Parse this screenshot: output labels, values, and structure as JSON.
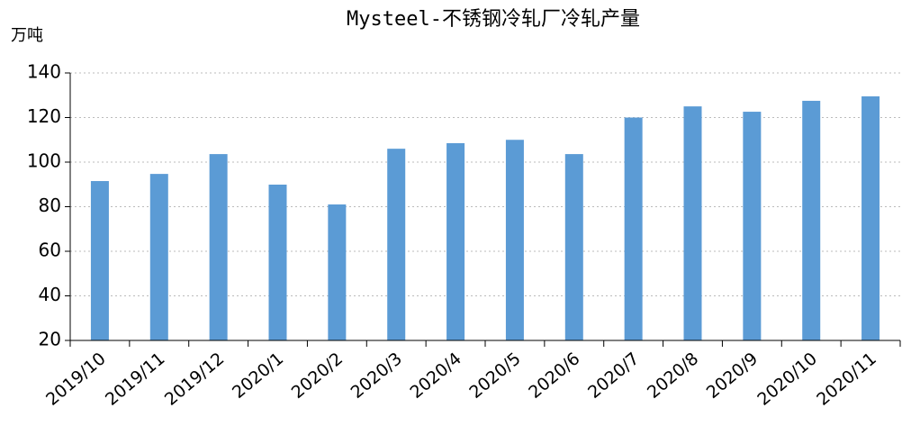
{
  "chart_data": {
    "type": "bar",
    "title": "Mysteel-不锈钢冷轧厂冷轧产量",
    "y_label": "万吨",
    "categories": [
      "2019/10",
      "2019/11",
      "2019/12",
      "2020/1",
      "2020/2",
      "2020/3",
      "2020/4",
      "2020/5",
      "2020/6",
      "2020/7",
      "2020/8",
      "2020/9",
      "2020/10",
      "2020/11"
    ],
    "values": [
      91.5,
      94.7,
      103.6,
      89.9,
      81,
      106,
      108.5,
      110,
      103.6,
      120,
      125,
      122.6,
      127.5,
      129.5
    ],
    "color": "#5b9bd5",
    "ylim": [
      20,
      140
    ],
    "yticks": [
      20,
      40,
      60,
      80,
      100,
      120,
      140
    ],
    "grid": true
  }
}
